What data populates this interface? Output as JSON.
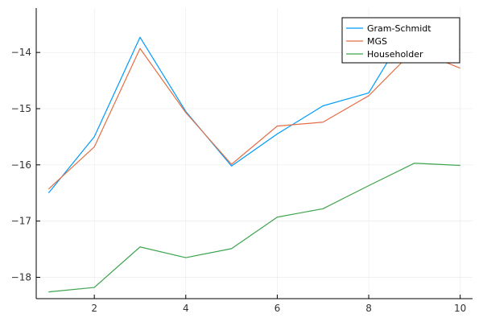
{
  "chart_data": {
    "type": "line",
    "x": [
      1,
      2,
      3,
      4,
      5,
      6,
      7,
      8,
      9,
      10
    ],
    "series": [
      {
        "name": "Gram-Schmidt",
        "color": "#009AFA",
        "values": [
          -16.5,
          -15.5,
          -13.73,
          -15.05,
          -16.02,
          -15.45,
          -14.95,
          -14.72,
          -13.38,
          -13.95
        ]
      },
      {
        "name": "MGS",
        "color": "#E36F47",
        "values": [
          -16.43,
          -15.68,
          -13.93,
          -15.07,
          -15.99,
          -15.31,
          -15.24,
          -14.77,
          -13.95,
          -14.28
        ]
      },
      {
        "name": "Householder",
        "color": "#3EA44E",
        "values": [
          -18.26,
          -18.18,
          -17.46,
          -17.65,
          -17.49,
          -16.93,
          -16.78,
          -16.37,
          -15.97,
          -16.01
        ]
      }
    ],
    "xticks": [
      2,
      4,
      6,
      8,
      10
    ],
    "yticks": [
      -18,
      -17,
      -16,
      -15,
      -14
    ],
    "xtick_labels": [
      "2",
      "4",
      "6",
      "8",
      "10"
    ],
    "ytick_labels": [
      "−18",
      "−17",
      "−16",
      "−15",
      "−14"
    ],
    "xlim": [
      0.73,
      10.27
    ],
    "ylim": [
      -18.38,
      -13.21
    ],
    "grid": true,
    "legend_position": "top-right",
    "title": "",
    "xlabel": "",
    "ylabel": ""
  }
}
